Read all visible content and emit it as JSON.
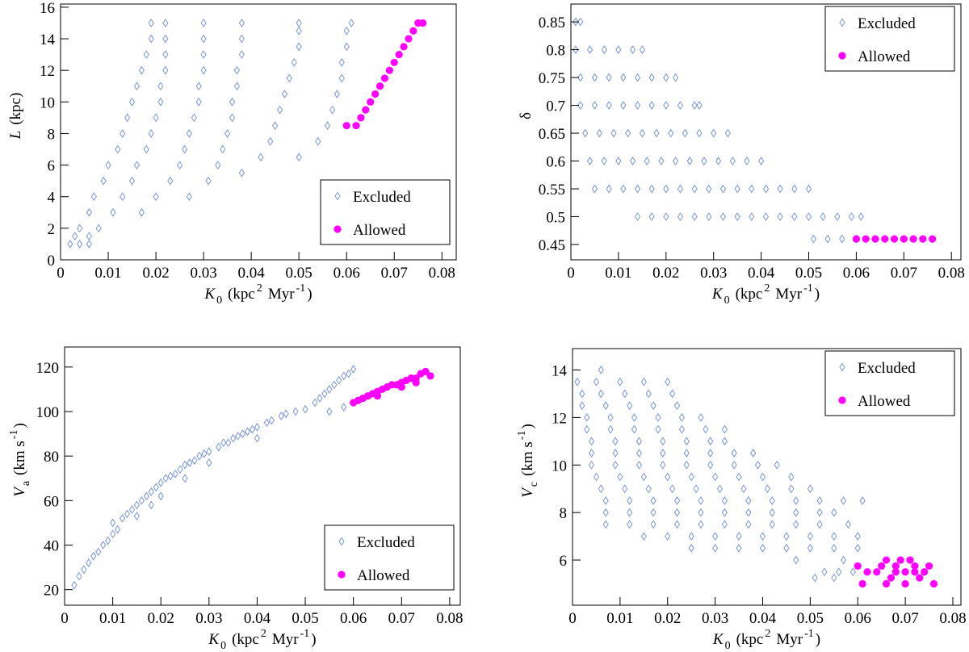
{
  "chart_data": [
    {
      "type": "scatter",
      "legend": "lower right",
      "xlabel": [
        "K",
        "0",
        "(kpc",
        "2",
        "Myr",
        "-1",
        ")"
      ],
      "xlabel_format": [
        "i",
        "sub",
        "n",
        "sup",
        "n",
        "sup",
        "n"
      ],
      "ylabel": [
        "L",
        "(kpc)"
      ],
      "ylabel_format": [
        "i",
        "n"
      ],
      "xlim": [
        0,
        0.083
      ],
      "ylim": [
        0,
        16.2
      ],
      "xticks": [
        0,
        0.01,
        0.02,
        0.03,
        0.04,
        0.05,
        0.06,
        0.07,
        0.08
      ],
      "yticks": [
        0,
        2,
        4,
        6,
        8,
        10,
        12,
        14,
        16
      ],
      "series": [
        {
          "name": "Excluded",
          "color": "#7b96d4",
          "marker": "diamond",
          "x": [
            0.002,
            0.004,
            0.006,
            0.007,
            0.009,
            0.01,
            0.012,
            0.013,
            0.014,
            0.015,
            0.016,
            0.017,
            0.018,
            0.019,
            0.019,
            0.004,
            0.006,
            0.003,
            0.006,
            0.008,
            0.011,
            0.013,
            0.015,
            0.016,
            0.018,
            0.019,
            0.02,
            0.021,
            0.021,
            0.022,
            0.022,
            0.022,
            0.022,
            0.017,
            0.02,
            0.023,
            0.025,
            0.026,
            0.027,
            0.028,
            0.029,
            0.029,
            0.03,
            0.03,
            0.03,
            0.03,
            0.027,
            0.031,
            0.033,
            0.034,
            0.035,
            0.036,
            0.036,
            0.037,
            0.037,
            0.038,
            0.038,
            0.038,
            0.038,
            0.042,
            0.044,
            0.045,
            0.046,
            0.047,
            0.048,
            0.049,
            0.05,
            0.05,
            0.05,
            0.05,
            0.054,
            0.056,
            0.057,
            0.058,
            0.059,
            0.059,
            0.06,
            0.06,
            0.061
          ],
          "y": [
            1,
            2,
            3,
            4,
            5,
            6,
            7,
            8,
            9,
            10,
            11,
            12,
            13,
            14,
            15,
            1,
            1,
            1.5,
            1.5,
            2,
            3,
            4,
            5,
            6,
            7,
            8,
            9,
            10,
            11,
            12,
            13,
            14,
            15,
            3,
            4,
            5,
            6,
            7,
            8,
            9,
            10,
            11,
            12,
            13,
            14,
            15,
            4,
            5,
            6,
            7,
            8,
            9,
            10,
            11,
            12,
            13,
            14,
            15,
            5.5,
            6.5,
            7.5,
            8.5,
            9.5,
            10.5,
            11.5,
            12.5,
            13.5,
            14.5,
            15,
            6.5,
            7.5,
            8.5,
            9.5,
            10.5,
            11.5,
            12.5,
            13.5,
            14.5,
            15
          ]
        },
        {
          "name": "Allowed",
          "color": "#ff00ff",
          "marker": "circle",
          "x": [
            0.06,
            0.062,
            0.063,
            0.064,
            0.065,
            0.066,
            0.067,
            0.068,
            0.069,
            0.07,
            0.071,
            0.072,
            0.073,
            0.074,
            0.075,
            0.076
          ],
          "y": [
            8.5,
            8.5,
            9,
            9.5,
            10,
            10.5,
            11,
            11.5,
            12,
            12.5,
            13,
            13.5,
            14,
            14.5,
            15,
            15
          ]
        }
      ]
    },
    {
      "type": "scatter",
      "legend": "upper right",
      "xlabel": [
        "K",
        "0",
        "(kpc",
        "2",
        "Myr",
        "-1",
        ")"
      ],
      "xlabel_format": [
        "i",
        "sub",
        "n",
        "sup",
        "n",
        "sup",
        "n"
      ],
      "ylabel": [
        "δ"
      ],
      "ylabel_format": [
        "n"
      ],
      "xlim": [
        0,
        0.082
      ],
      "ylim": [
        0.4225,
        0.882
      ],
      "xticks": [
        0,
        0.01,
        0.02,
        0.03,
        0.04,
        0.05,
        0.06,
        0.07,
        0.08
      ],
      "yticks": [
        0.45,
        0.5,
        0.55,
        0.6,
        0.65,
        0.7,
        0.75,
        0.8,
        0.85
      ],
      "series": [
        {
          "name": "Excluded",
          "color": "#7b96d4",
          "marker": "diamond",
          "x": [
            0.001,
            0.002,
            0.001,
            0.004,
            0.007,
            0.01,
            0.013,
            0.015,
            0.002,
            0.005,
            0.008,
            0.011,
            0.014,
            0.017,
            0.02,
            0.022,
            0.002,
            0.005,
            0.008,
            0.011,
            0.014,
            0.017,
            0.02,
            0.023,
            0.026,
            0.027,
            0.003,
            0.006,
            0.009,
            0.012,
            0.015,
            0.018,
            0.021,
            0.024,
            0.027,
            0.03,
            0.033,
            0.004,
            0.007,
            0.01,
            0.013,
            0.016,
            0.019,
            0.022,
            0.025,
            0.028,
            0.031,
            0.034,
            0.037,
            0.04,
            0.005,
            0.008,
            0.011,
            0.014,
            0.017,
            0.02,
            0.023,
            0.026,
            0.029,
            0.032,
            0.035,
            0.038,
            0.041,
            0.044,
            0.047,
            0.05,
            0.014,
            0.017,
            0.02,
            0.023,
            0.026,
            0.029,
            0.032,
            0.035,
            0.038,
            0.041,
            0.044,
            0.047,
            0.05,
            0.053,
            0.056,
            0.059,
            0.061,
            0.051,
            0.054,
            0.057,
            0.06
          ],
          "y": [
            0.85,
            0.85,
            0.8,
            0.8,
            0.8,
            0.8,
            0.8,
            0.8,
            0.75,
            0.75,
            0.75,
            0.75,
            0.75,
            0.75,
            0.75,
            0.75,
            0.7,
            0.7,
            0.7,
            0.7,
            0.7,
            0.7,
            0.7,
            0.7,
            0.7,
            0.7,
            0.65,
            0.65,
            0.65,
            0.65,
            0.65,
            0.65,
            0.65,
            0.65,
            0.65,
            0.65,
            0.65,
            0.6,
            0.6,
            0.6,
            0.6,
            0.6,
            0.6,
            0.6,
            0.6,
            0.6,
            0.6,
            0.6,
            0.6,
            0.6,
            0.55,
            0.55,
            0.55,
            0.55,
            0.55,
            0.55,
            0.55,
            0.55,
            0.55,
            0.55,
            0.55,
            0.55,
            0.55,
            0.55,
            0.55,
            0.55,
            0.5,
            0.5,
            0.5,
            0.5,
            0.5,
            0.5,
            0.5,
            0.5,
            0.5,
            0.5,
            0.5,
            0.5,
            0.5,
            0.5,
            0.5,
            0.5,
            0.5,
            0.46,
            0.46,
            0.46,
            0.46
          ]
        },
        {
          "name": "Allowed",
          "color": "#ff00ff",
          "marker": "circle",
          "x": [
            0.06,
            0.062,
            0.064,
            0.066,
            0.068,
            0.07,
            0.072,
            0.074,
            0.076
          ],
          "y": [
            0.46,
            0.46,
            0.46,
            0.46,
            0.46,
            0.46,
            0.46,
            0.46,
            0.46
          ]
        }
      ]
    },
    {
      "type": "scatter",
      "legend": "lower right",
      "xlabel": [
        "K",
        "0",
        "(kpc",
        "2",
        "Myr",
        "-1",
        ")"
      ],
      "xlabel_format": [
        "i",
        "sub",
        "n",
        "sup",
        "n",
        "sup",
        "n"
      ],
      "ylabel": [
        "V",
        "a",
        "(km s",
        "-1",
        ")"
      ],
      "ylabel_format": [
        "i",
        "sub",
        "n",
        "sup",
        "n"
      ],
      "xlim": [
        0,
        0.0822
      ],
      "ylim": [
        13,
        129
      ],
      "xticks": [
        0,
        0.01,
        0.02,
        0.03,
        0.04,
        0.05,
        0.06,
        0.07,
        0.08
      ],
      "yticks": [
        20,
        40,
        60,
        80,
        100,
        120
      ],
      "series": [
        {
          "name": "Excluded",
          "color": "#7b96d4",
          "marker": "diamond",
          "x": [
            0.002,
            0.003,
            0.004,
            0.005,
            0.006,
            0.007,
            0.008,
            0.009,
            0.01,
            0.01,
            0.011,
            0.012,
            0.013,
            0.014,
            0.015,
            0.015,
            0.016,
            0.017,
            0.018,
            0.018,
            0.019,
            0.02,
            0.02,
            0.021,
            0.022,
            0.023,
            0.024,
            0.025,
            0.025,
            0.026,
            0.027,
            0.028,
            0.029,
            0.03,
            0.03,
            0.032,
            0.033,
            0.034,
            0.035,
            0.036,
            0.037,
            0.038,
            0.039,
            0.04,
            0.04,
            0.042,
            0.043,
            0.045,
            0.046,
            0.048,
            0.05,
            0.052,
            0.053,
            0.054,
            0.055,
            0.056,
            0.057,
            0.058,
            0.059,
            0.06,
            0.055,
            0.058
          ],
          "y": [
            22,
            26,
            29,
            32,
            35,
            37,
            40,
            42,
            45,
            50,
            47,
            52,
            54,
            56,
            58,
            53,
            60,
            62,
            64,
            58,
            66,
            68,
            62,
            70,
            71,
            72,
            74,
            76,
            70,
            77,
            78,
            80,
            81,
            82,
            77,
            84,
            86,
            86,
            88,
            89,
            90,
            91,
            92,
            93,
            88,
            95,
            96,
            98,
            99,
            100,
            101,
            104,
            106,
            108,
            110,
            112,
            114,
            116,
            117,
            119,
            100,
            102
          ]
        },
        {
          "name": "Allowed",
          "color": "#ff00ff",
          "marker": "circle",
          "x": [
            0.06,
            0.061,
            0.062,
            0.063,
            0.064,
            0.065,
            0.066,
            0.067,
            0.068,
            0.069,
            0.07,
            0.071,
            0.072,
            0.073,
            0.074,
            0.075,
            0.076,
            0.065,
            0.07,
            0.073
          ],
          "y": [
            104,
            105,
            106,
            107,
            108,
            109,
            110,
            111,
            112,
            112,
            113,
            114,
            115,
            115,
            117,
            118,
            116,
            107,
            111,
            113
          ]
        }
      ]
    },
    {
      "type": "scatter",
      "legend": "upper right",
      "xlabel": [
        "K",
        "0",
        "(kpc",
        "2",
        "Myr",
        "-1",
        ")"
      ],
      "xlabel_format": [
        "i",
        "sub",
        "n",
        "sup",
        "n",
        "sup",
        "n"
      ],
      "ylabel": [
        "V",
        "c",
        "(km s",
        "-1",
        ")"
      ],
      "ylabel_format": [
        "i",
        "sub",
        "n",
        "sup",
        "n"
      ],
      "xlim": [
        0,
        0.0817
      ],
      "ylim": [
        4.1,
        14.9
      ],
      "xticks": [
        0,
        0.01,
        0.02,
        0.03,
        0.04,
        0.05,
        0.06,
        0.07,
        0.08
      ],
      "yticks": [
        6,
        8,
        10,
        12,
        14
      ],
      "series": [
        {
          "name": "Excluded",
          "color": "#7b96d4",
          "marker": "diamond",
          "x": [
            0.006,
            0.001,
            0.005,
            0.01,
            0.015,
            0.02,
            0.002,
            0.006,
            0.011,
            0.016,
            0.021,
            0.002,
            0.007,
            0.012,
            0.017,
            0.022,
            0.003,
            0.008,
            0.013,
            0.018,
            0.023,
            0.027,
            0.003,
            0.008,
            0.013,
            0.018,
            0.023,
            0.028,
            0.032,
            0.004,
            0.009,
            0.014,
            0.019,
            0.024,
            0.029,
            0.032,
            0.004,
            0.009,
            0.014,
            0.019,
            0.024,
            0.029,
            0.034,
            0.038,
            0.004,
            0.009,
            0.014,
            0.019,
            0.024,
            0.029,
            0.034,
            0.039,
            0.043,
            0.005,
            0.01,
            0.015,
            0.02,
            0.025,
            0.03,
            0.035,
            0.04,
            0.046,
            0.006,
            0.011,
            0.016,
            0.021,
            0.026,
            0.031,
            0.036,
            0.041,
            0.046,
            0.05,
            0.007,
            0.012,
            0.017,
            0.022,
            0.027,
            0.032,
            0.037,
            0.042,
            0.047,
            0.052,
            0.057,
            0.061,
            0.007,
            0.012,
            0.017,
            0.022,
            0.027,
            0.032,
            0.037,
            0.042,
            0.047,
            0.052,
            0.055,
            0.007,
            0.012,
            0.017,
            0.022,
            0.027,
            0.032,
            0.037,
            0.042,
            0.047,
            0.052,
            0.058,
            0.015,
            0.02,
            0.025,
            0.03,
            0.035,
            0.04,
            0.045,
            0.05,
            0.055,
            0.06,
            0.025,
            0.03,
            0.035,
            0.04,
            0.045,
            0.05,
            0.055,
            0.06,
            0.047,
            0.057,
            0.053,
            0.056,
            0.059,
            0.051,
            0.055
          ],
          "y": [
            14,
            13.5,
            13.5,
            13.5,
            13.5,
            13.5,
            13,
            13,
            13,
            13,
            13,
            12.5,
            12.5,
            12.5,
            12.5,
            12.5,
            12,
            12,
            12,
            12,
            12,
            12,
            11.5,
            11.5,
            11.5,
            11.5,
            11.5,
            11.5,
            11.5,
            11,
            11,
            11,
            11,
            11,
            11,
            11,
            10.5,
            10.5,
            10.5,
            10.5,
            10.5,
            10.5,
            10.5,
            10.5,
            10,
            10,
            10,
            10,
            10,
            10,
            10,
            10,
            10,
            9.5,
            9.5,
            9.5,
            9.5,
            9.5,
            9.5,
            9.5,
            9.5,
            9.5,
            9,
            9,
            9,
            9,
            9,
            9,
            9,
            9,
            9,
            9,
            8.5,
            8.5,
            8.5,
            8.5,
            8.5,
            8.5,
            8.5,
            8.5,
            8.5,
            8.5,
            8.5,
            8.5,
            8,
            8,
            8,
            8,
            8,
            8,
            8,
            8,
            8,
            8,
            8,
            7.5,
            7.5,
            7.5,
            7.5,
            7.5,
            7.5,
            7.5,
            7.5,
            7.5,
            7.5,
            7.5,
            7,
            7,
            7,
            7,
            7,
            7,
            7,
            7,
            7,
            7,
            6.5,
            6.5,
            6.5,
            6.5,
            6.5,
            6.5,
            6.5,
            6.5,
            6,
            6,
            5.5,
            5.5,
            5.5,
            5.25,
            5.25
          ]
        },
        {
          "name": "Allowed",
          "color": "#ff00ff",
          "marker": "circle",
          "x": [
            0.06,
            0.062,
            0.061,
            0.064,
            0.065,
            0.066,
            0.067,
            0.068,
            0.069,
            0.07,
            0.071,
            0.072,
            0.073,
            0.074,
            0.075,
            0.076,
            0.066,
            0.07,
            0.072,
            0.068
          ],
          "y": [
            5.75,
            5.5,
            5.0,
            5.5,
            5.75,
            6,
            5.25,
            5.75,
            6,
            5.5,
            6,
            5.75,
            5.25,
            5.5,
            5.75,
            5.0,
            5.0,
            5.0,
            5.5,
            5.5
          ]
        }
      ]
    }
  ]
}
